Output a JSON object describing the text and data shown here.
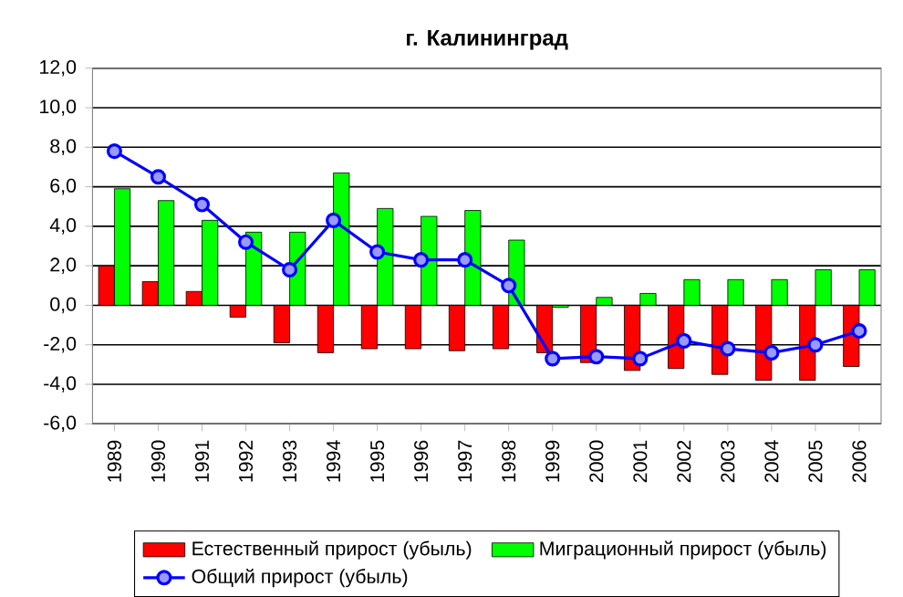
{
  "chart_data": {
    "type": "bar",
    "title": "г. Калининград",
    "categories": [
      "1989",
      "1990",
      "1991",
      "1992",
      "1993",
      "1994",
      "1995",
      "1996",
      "1997",
      "1998",
      "1999",
      "2000",
      "2001",
      "2002",
      "2003",
      "2004",
      "2005",
      "2006"
    ],
    "series": [
      {
        "name": "Естественный прирост (убыль)",
        "color": "#ff0000",
        "values": [
          2.0,
          1.2,
          0.7,
          -0.6,
          -1.9,
          -2.4,
          -2.2,
          -2.2,
          -2.3,
          -2.2,
          -2.4,
          -2.9,
          -3.3,
          -3.2,
          -3.5,
          -3.8,
          -3.8,
          -3.1
        ]
      },
      {
        "name": "Миграционный прирост (убыль)",
        "color": "#00ff00",
        "values": [
          5.9,
          5.3,
          4.3,
          3.7,
          3.7,
          6.7,
          4.9,
          4.5,
          4.8,
          3.3,
          -0.1,
          0.4,
          0.6,
          1.3,
          1.3,
          1.3,
          1.8,
          1.8
        ]
      },
      {
        "name": "Общий прирост (убыль)",
        "type": "line",
        "color": "#0000ff",
        "marker": "circle",
        "values": [
          7.8,
          6.5,
          5.1,
          3.2,
          1.8,
          4.3,
          2.7,
          2.3,
          2.3,
          1.0,
          -2.7,
          -2.6,
          -2.7,
          -1.8,
          -2.2,
          -2.4,
          -2.0,
          -1.3
        ]
      }
    ],
    "ylim": [
      -6,
      12
    ],
    "yticks": [
      {
        "value": -6,
        "label": "-6,0"
      },
      {
        "value": -4,
        "label": "-4,0"
      },
      {
        "value": -2,
        "label": "-2,0"
      },
      {
        "value": 0,
        "label": "0,0"
      },
      {
        "value": 2,
        "label": "2,0"
      },
      {
        "value": 4,
        "label": "4,0"
      },
      {
        "value": 6,
        "label": "6,0"
      },
      {
        "value": 8,
        "label": "8,0"
      },
      {
        "value": 10,
        "label": "10,0"
      },
      {
        "value": 12,
        "label": "12,0"
      }
    ],
    "grid": "y",
    "legend": "bottom"
  }
}
